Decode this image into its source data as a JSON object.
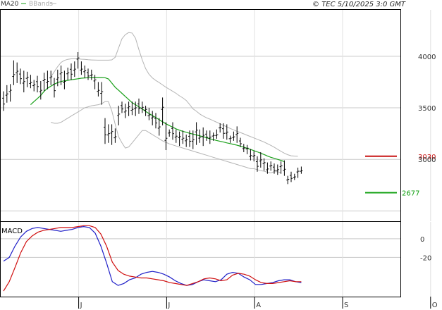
{
  "header": {
    "legend_ma": "MA20",
    "legend_bands": "BBands",
    "copyright": "© TEC 5/10/2025 3:0 GMT"
  },
  "colors": {
    "price": "#000000",
    "ma": "#1aa01a",
    "bands": "#b4b4b4",
    "macd": "#2020c8",
    "signal": "#d01010",
    "resistance": "#c81414",
    "support": "#10a010",
    "grid": "#c9c9c9"
  },
  "chart_data": [
    {
      "type": "line",
      "name": "price",
      "ylim": [
        2400,
        4450
      ],
      "y_ticks": [
        4000,
        3500,
        3000
      ],
      "y_tick_labels": [
        "4000",
        "3500",
        "3000"
      ],
      "x_tick_labels": [
        "J",
        "J",
        "A",
        "S",
        "O"
      ],
      "x_tick_index": [
        22,
        48,
        74,
        100,
        126
      ],
      "ohlc_low_high": [
        [
          3470,
          3660
        ],
        [
          3550,
          3720
        ],
        [
          3560,
          3730
        ],
        [
          3720,
          3960
        ],
        [
          3740,
          3940
        ],
        [
          3730,
          3880
        ],
        [
          3650,
          3860
        ],
        [
          3700,
          3850
        ],
        [
          3690,
          3820
        ],
        [
          3660,
          3770
        ],
        [
          3650,
          3810
        ],
        [
          3580,
          3760
        ],
        [
          3660,
          3840
        ],
        [
          3680,
          3860
        ],
        [
          3720,
          3860
        ],
        [
          3600,
          3790
        ],
        [
          3710,
          3870
        ],
        [
          3720,
          3910
        ],
        [
          3680,
          3860
        ],
        [
          3770,
          3890
        ],
        [
          3770,
          3930
        ],
        [
          3800,
          3950
        ],
        [
          3880,
          4040
        ],
        [
          3820,
          3950
        ],
        [
          3790,
          3910
        ],
        [
          3770,
          3880
        ],
        [
          3770,
          3870
        ],
        [
          3680,
          3820
        ],
        [
          3610,
          3750
        ],
        [
          3530,
          3750
        ],
        [
          3150,
          3400
        ],
        [
          3160,
          3340
        ],
        [
          3140,
          3340
        ],
        [
          3160,
          3300
        ],
        [
          3330,
          3520
        ],
        [
          3450,
          3560
        ],
        [
          3400,
          3540
        ],
        [
          3420,
          3560
        ],
        [
          3430,
          3560
        ],
        [
          3420,
          3560
        ],
        [
          3440,
          3590
        ],
        [
          3450,
          3560
        ],
        [
          3420,
          3520
        ],
        [
          3380,
          3500
        ],
        [
          3330,
          3470
        ],
        [
          3300,
          3450
        ],
        [
          3230,
          3400
        ],
        [
          3330,
          3600
        ],
        [
          3090,
          3360
        ],
        [
          3220,
          3290
        ],
        [
          3190,
          3360
        ],
        [
          3160,
          3290
        ],
        [
          3130,
          3270
        ],
        [
          3150,
          3280
        ],
        [
          3120,
          3240
        ],
        [
          3120,
          3280
        ],
        [
          3100,
          3280
        ],
        [
          3140,
          3360
        ],
        [
          3160,
          3290
        ],
        [
          3130,
          3310
        ],
        [
          3180,
          3280
        ],
        [
          3150,
          3280
        ],
        [
          3180,
          3260
        ],
        [
          3200,
          3290
        ],
        [
          3260,
          3350
        ],
        [
          3200,
          3350
        ],
        [
          3190,
          3340
        ],
        [
          3160,
          3230
        ],
        [
          3180,
          3270
        ],
        [
          3160,
          3320
        ],
        [
          3120,
          3210
        ],
        [
          3070,
          3150
        ],
        [
          3050,
          3140
        ],
        [
          2990,
          3100
        ],
        [
          2980,
          3080
        ],
        [
          2880,
          3030
        ],
        [
          2920,
          3070
        ],
        [
          2890,
          3010
        ],
        [
          2860,
          2970
        ],
        [
          2890,
          2980
        ],
        [
          2860,
          2960
        ],
        [
          2850,
          2950
        ],
        [
          2860,
          2980
        ],
        [
          2840,
          2990
        ],
        [
          2760,
          2840
        ],
        [
          2780,
          2880
        ],
        [
          2800,
          2860
        ],
        [
          2820,
          2920
        ],
        [
          2860,
          2930
        ]
      ],
      "ma20": [
        3530,
        3560,
        3590,
        3620,
        3660,
        3690,
        3710,
        3730,
        3745,
        3755,
        3762,
        3767,
        3772,
        3777,
        3782,
        3787,
        3790,
        3792,
        3793,
        3793,
        3793,
        3793,
        3792,
        3780,
        3740,
        3700,
        3670,
        3640,
        3610,
        3580,
        3550,
        3530,
        3510,
        3490,
        3465,
        3445,
        3425,
        3405,
        3385,
        3365,
        3345,
        3328,
        3312,
        3296,
        3283,
        3272,
        3263,
        3253,
        3245,
        3237,
        3228,
        3220,
        3210,
        3200,
        3191,
        3183,
        3175,
        3168,
        3160,
        3153,
        3145,
        3137,
        3128,
        3118,
        3107,
        3096,
        3085,
        3073,
        3060,
        3047,
        3033,
        3020,
        3010,
        3000,
        2990,
        2978
      ],
      "ma20_start_index": 8,
      "upper_band": [
        3800,
        3850,
        3900,
        3940,
        3960,
        3970,
        3975,
        3975,
        3975,
        3972,
        3970,
        3966,
        3964,
        3963,
        3962,
        3962,
        3962,
        3962,
        3965,
        3990,
        4080,
        4170,
        4210,
        4230,
        4225,
        4175,
        4065,
        3965,
        3880,
        3825,
        3790,
        3765,
        3745,
        3722,
        3700,
        3680,
        3660,
        3640,
        3616,
        3596,
        3571,
        3532,
        3490,
        3467,
        3440,
        3420,
        3403,
        3390,
        3375,
        3360,
        3345,
        3330,
        3315,
        3300,
        3286,
        3272,
        3260,
        3247,
        3234,
        3221,
        3208,
        3195,
        3182,
        3168,
        3152,
        3136,
        3118,
        3098,
        3078,
        3060,
        3045,
        3035,
        3032,
        3030
      ],
      "lower_band": [
        3360,
        3350,
        3350,
        3360,
        3380,
        3400,
        3420,
        3440,
        3460,
        3480,
        3500,
        3510,
        3520,
        3525,
        3530,
        3540,
        3560,
        3560,
        3470,
        3340,
        3220,
        3160,
        3110,
        3120,
        3160,
        3200,
        3240,
        3280,
        3280,
        3260,
        3240,
        3220,
        3200,
        3180,
        3165,
        3150,
        3140,
        3130,
        3120,
        3110,
        3100,
        3090,
        3080,
        3070,
        3060,
        3050,
        3040,
        3030,
        3020,
        3010,
        3000,
        2990,
        2980,
        2970,
        2960,
        2950,
        2940,
        2930,
        2920,
        2910,
        2910,
        2900,
        2890,
        2885,
        2875,
        2870,
        2880,
        2880,
        2870
      ],
      "band_start_index": 14,
      "resistance": 3030,
      "resistance_label": "3030",
      "support": 2677,
      "support_label": "2677"
    },
    {
      "type": "line",
      "title": "MACD",
      "ylim": [
        -62,
        18
      ],
      "y_ticks": [
        0,
        -20
      ],
      "y_tick_labels": [
        "0",
        "-20"
      ],
      "series": [
        {
          "key": "macd",
          "values": [
            -24,
            -20,
            -8,
            2,
            8,
            11,
            12,
            11,
            10,
            9,
            8,
            9,
            10,
            12,
            13,
            12,
            6,
            -8,
            -26,
            -46,
            -50,
            -48,
            -44,
            -42,
            -38,
            -36,
            -35,
            -36,
            -38,
            -41,
            -45,
            -48,
            -50,
            -49,
            -46,
            -44,
            -45,
            -46,
            -44,
            -38,
            -36,
            -37,
            -41,
            -44,
            -49,
            -49,
            -48,
            -47,
            -45,
            -44,
            -44,
            -46,
            -47
          ]
        },
        {
          "key": "signal",
          "values": [
            -56,
            -46,
            -31,
            -15,
            -3,
            3,
            7,
            9,
            10,
            11,
            12,
            12,
            12,
            13,
            14,
            14,
            12,
            5,
            -8,
            -25,
            -34,
            -38,
            -40,
            -41,
            -42,
            -42,
            -43,
            -44,
            -45,
            -47,
            -48,
            -49,
            -50,
            -48,
            -46,
            -43,
            -42,
            -43,
            -45,
            -44,
            -39,
            -37,
            -38,
            -40,
            -44,
            -47,
            -48,
            -48,
            -47,
            -46,
            -45,
            -46,
            -46
          ]
        }
      ]
    }
  ]
}
